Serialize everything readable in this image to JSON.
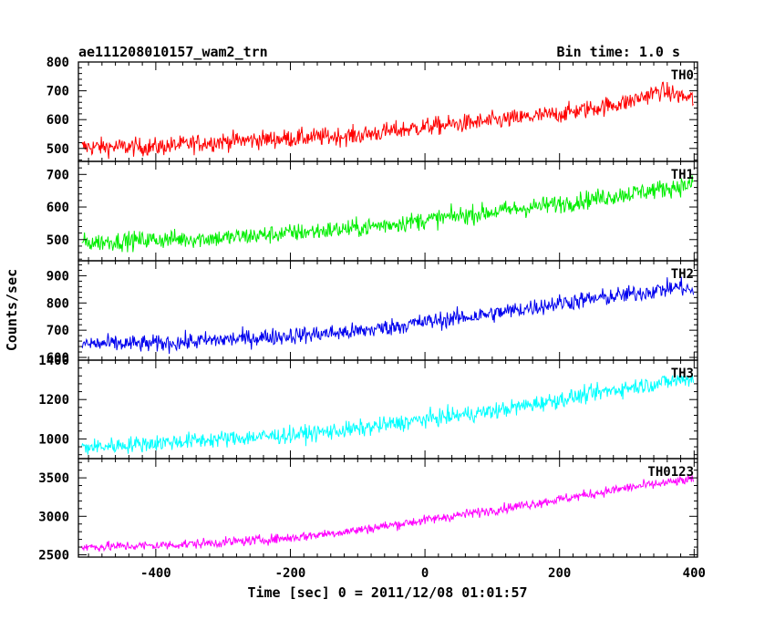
{
  "chart_data": {
    "type": "line",
    "title_left": "ae111208010157_wam2_trn",
    "title_right": "Bin time: 1.0 s",
    "xlabel": "Time [sec] 0 = 2011/12/08 01:01:57",
    "ylabel": "Counts/sec",
    "xlim": [
      -515,
      405
    ],
    "xticks": [
      -400,
      -200,
      0,
      200,
      400
    ],
    "grid": false,
    "series": [
      {
        "name": "TH0",
        "color": "#ff0000",
        "ylim": [
          455,
          800
        ],
        "yticks": [
          500,
          600,
          700,
          800
        ],
        "start": 500,
        "end": 690,
        "noise": 45,
        "trend": [
          [
            -510,
            505
          ],
          [
            -400,
            505
          ],
          [
            -300,
            525
          ],
          [
            -200,
            535
          ],
          [
            -100,
            545
          ],
          [
            0,
            575
          ],
          [
            100,
            595
          ],
          [
            200,
            620
          ],
          [
            300,
            660
          ],
          [
            350,
            700
          ],
          [
            400,
            670
          ]
        ]
      },
      {
        "name": "TH1",
        "color": "#00ee00",
        "ylim": [
          435,
          740
        ],
        "yticks": [
          500,
          600,
          700
        ],
        "start": 490,
        "end": 670,
        "noise": 40,
        "trend": [
          [
            -510,
            490
          ],
          [
            -400,
            500
          ],
          [
            -300,
            505
          ],
          [
            -200,
            520
          ],
          [
            -100,
            535
          ],
          [
            0,
            560
          ],
          [
            100,
            585
          ],
          [
            200,
            610
          ],
          [
            300,
            640
          ],
          [
            400,
            670
          ]
        ]
      },
      {
        "name": "TH2",
        "color": "#0000ee",
        "ylim": [
          590,
          955
        ],
        "yticks": [
          600,
          700,
          800,
          900
        ],
        "start": 650,
        "end": 870,
        "noise": 45,
        "trend": [
          [
            -510,
            650
          ],
          [
            -400,
            650
          ],
          [
            -300,
            665
          ],
          [
            -200,
            680
          ],
          [
            -100,
            695
          ],
          [
            0,
            730
          ],
          [
            100,
            760
          ],
          [
            200,
            800
          ],
          [
            300,
            830
          ],
          [
            380,
            860
          ],
          [
            400,
            840
          ]
        ]
      },
      {
        "name": "TH3",
        "color": "#00ffff",
        "ylim": [
          900,
          1400
        ],
        "yticks": [
          1000,
          1200,
          1400
        ],
        "start": 950,
        "end": 1320,
        "noise": 60,
        "trend": [
          [
            -510,
            955
          ],
          [
            -400,
            980
          ],
          [
            -300,
            1000
          ],
          [
            -200,
            1020
          ],
          [
            -100,
            1050
          ],
          [
            0,
            1100
          ],
          [
            100,
            1140
          ],
          [
            200,
            1200
          ],
          [
            300,
            1260
          ],
          [
            400,
            1310
          ]
        ]
      },
      {
        "name": "TH0123",
        "color": "#ff00ff",
        "ylim": [
          2470,
          3750
        ],
        "yticks": [
          2500,
          3000,
          3500
        ],
        "start": 2600,
        "end": 3500,
        "noise": 90,
        "trend": [
          [
            -510,
            2600
          ],
          [
            -400,
            2620
          ],
          [
            -300,
            2660
          ],
          [
            -200,
            2720
          ],
          [
            -100,
            2820
          ],
          [
            0,
            2950
          ],
          [
            100,
            3080
          ],
          [
            200,
            3220
          ],
          [
            300,
            3370
          ],
          [
            400,
            3480
          ]
        ]
      }
    ]
  }
}
